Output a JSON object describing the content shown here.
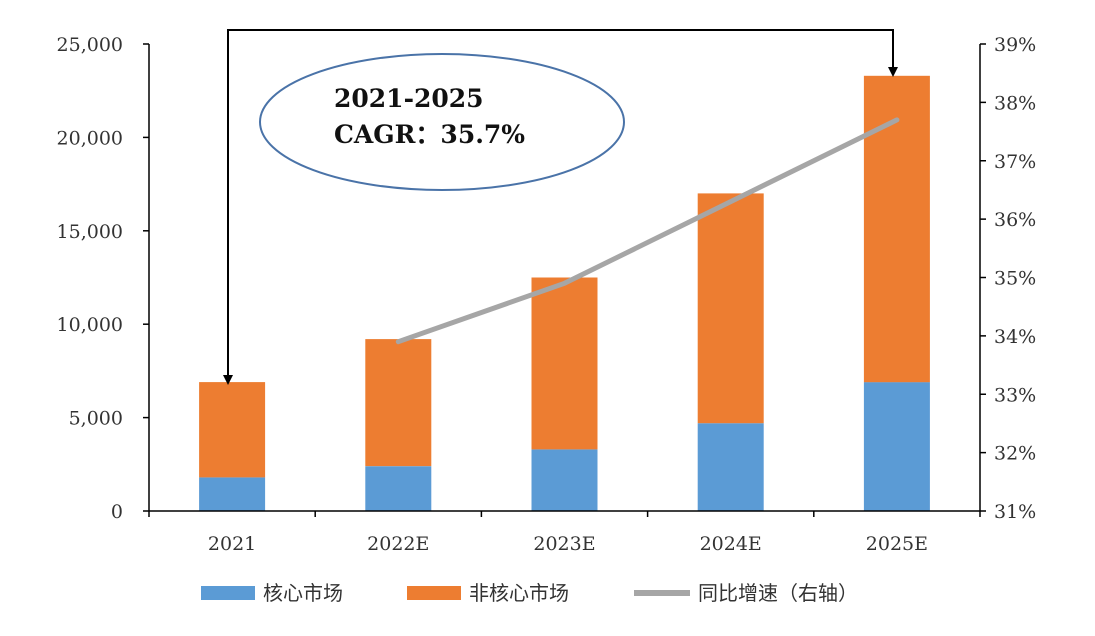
{
  "chart_data": {
    "type": "bar",
    "stacked": true,
    "categories": [
      "2021",
      "2022E",
      "2023E",
      "2024E",
      "2025E"
    ],
    "series": [
      {
        "name": "核心市场",
        "values": [
          1800,
          2400,
          3300,
          4700,
          6900
        ],
        "color": "#5b9bd5"
      },
      {
        "name": "非核心市场",
        "values": [
          5100,
          6800,
          9200,
          12300,
          16400
        ],
        "color": "#ed7d31"
      }
    ],
    "line_series": {
      "name": "同比增速（右轴）",
      "categories": [
        "2022E",
        "2023E",
        "2024E",
        "2025E"
      ],
      "values": [
        33.9,
        34.9,
        36.3,
        37.7
      ],
      "color": "#a6a6a6",
      "axis": "right"
    },
    "y_left": {
      "min": 0,
      "max": 25000,
      "ticks": [
        0,
        5000,
        10000,
        15000,
        20000,
        25000
      ],
      "tick_labels": [
        "0",
        "5,000",
        "10,000",
        "15,000",
        "20,000",
        "25,000"
      ]
    },
    "y_right": {
      "min": 31,
      "max": 39,
      "ticks": [
        31,
        32,
        33,
        34,
        35,
        36,
        37,
        38,
        39
      ],
      "tick_labels": [
        "31%",
        "32%",
        "33%",
        "34%",
        "35%",
        "36%",
        "37%",
        "38%",
        "39%"
      ]
    },
    "annotation": {
      "line1": "2021-2025",
      "line2": "CAGR：35.7%"
    },
    "legend": {
      "position": "bottom",
      "entries": [
        "核心市场",
        "非核心市场",
        "同比增速（右轴）"
      ]
    }
  }
}
